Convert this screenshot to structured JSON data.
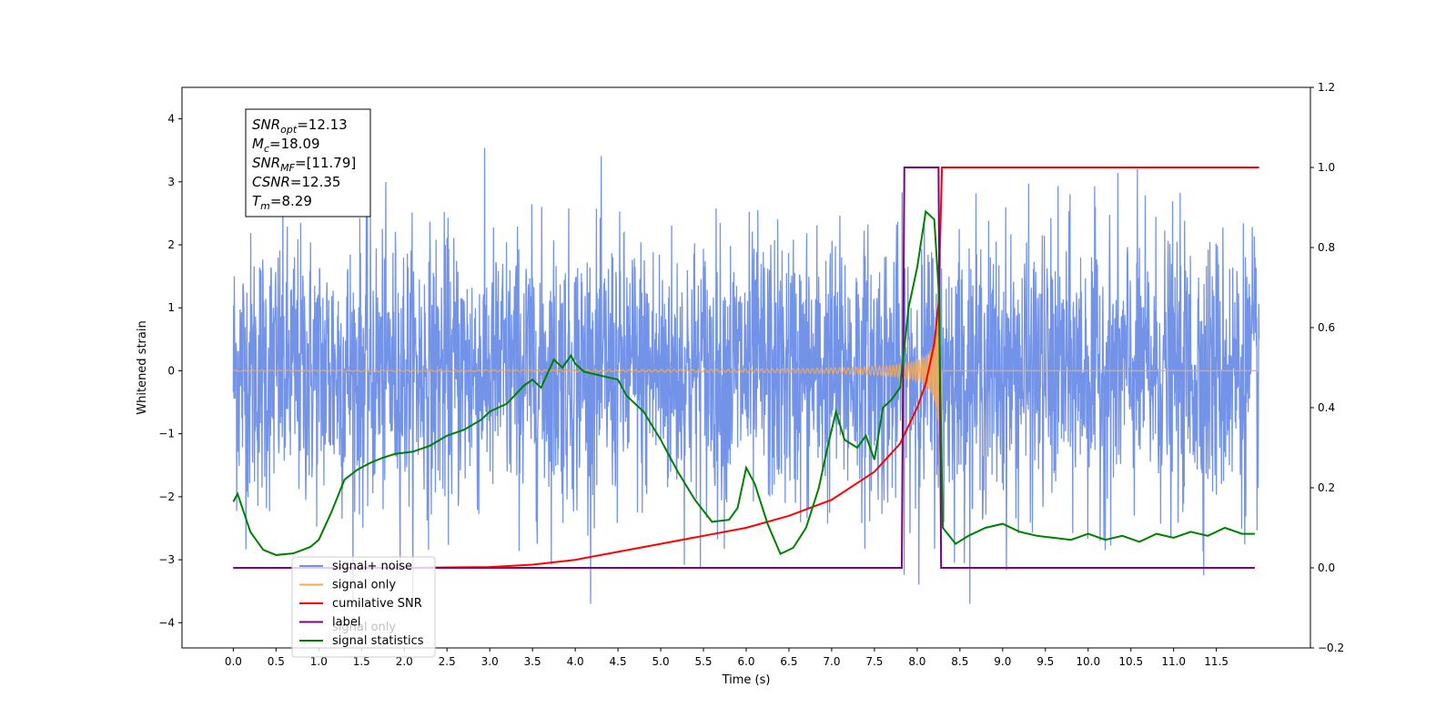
{
  "chart_data": {
    "type": "line",
    "xlabel": "Time (s)",
    "ylabel": "Whitened strain",
    "xlim": [
      -0.6,
      12.6
    ],
    "ylim": [
      -4.4,
      4.5
    ],
    "y2lim": [
      -0.2,
      1.2
    ],
    "x_ticks": [
      "0.0",
      "0.5",
      "1.0",
      "1.5",
      "2.0",
      "2.5",
      "3.0",
      "3.5",
      "4.0",
      "4.5",
      "5.0",
      "5.5",
      "6.0",
      "6.5",
      "7.0",
      "7.5",
      "8.0",
      "8.5",
      "9.0",
      "9.5",
      "10.0",
      "10.5",
      "11.0",
      "11.5"
    ],
    "y_ticks": [
      "4",
      "3",
      "2",
      "1",
      "0",
      "−1",
      "−2",
      "−3",
      "−4"
    ],
    "y2_ticks": [
      "1.2",
      "1.0",
      "0.8",
      "0.6",
      "0.4",
      "0.2",
      "0.0",
      "−0.2"
    ],
    "grid": false,
    "legend_position": "bottom-left",
    "annotation": [
      {
        "base": "SNR",
        "sub": "opt",
        "value": "=12.13"
      },
      {
        "base": "M",
        "sub": "c",
        "value": "=18.09"
      },
      {
        "base": "SNR",
        "sub": "MF",
        "value": "=[11.79]"
      },
      {
        "base": "CSNR",
        "sub": "",
        "value": "=12.35"
      },
      {
        "base": "T",
        "sub": "m",
        "value": "=8.29"
      }
    ],
    "ghost_legend_label": "signal only",
    "series": [
      {
        "name": "signal+ noise",
        "color": "#7393e8",
        "axis": "left",
        "description": "white noise, std approx 1.1, peaks to about 3.7 and -3.7, spanning 0.0 to 12.0 s"
      },
      {
        "name": "signal only",
        "color": "#f5a955",
        "axis": "left",
        "description": "chirp, amplitude near 0 until about 4.5 s, grows to about 0.6 at 8.29 s, then 0"
      },
      {
        "name": "cumilative SNR",
        "color": "#ff0000",
        "axis": "right",
        "x": [
          0.0,
          2.0,
          3.0,
          3.5,
          4.0,
          4.5,
          5.0,
          5.5,
          6.0,
          6.5,
          7.0,
          7.5,
          7.8,
          8.0,
          8.1,
          8.2,
          8.25,
          8.29,
          12.0
        ],
        "y": [
          0.0,
          0.0,
          0.002,
          0.008,
          0.02,
          0.04,
          0.06,
          0.08,
          0.1,
          0.13,
          0.17,
          0.24,
          0.31,
          0.4,
          0.46,
          0.56,
          0.66,
          1.0,
          1.0
        ]
      },
      {
        "name": "label",
        "color": "#800080",
        "axis": "right",
        "x": [
          0.0,
          7.82,
          7.85,
          8.25,
          8.28,
          11.95
        ],
        "y": [
          0.0,
          0.0,
          1.0,
          1.0,
          0.0,
          0.0
        ]
      },
      {
        "name": "signal statistics",
        "color": "#008000",
        "axis": "right",
        "x": [
          0.0,
          0.05,
          0.2,
          0.35,
          0.5,
          0.7,
          0.9,
          1.0,
          1.15,
          1.3,
          1.45,
          1.6,
          1.75,
          1.9,
          2.1,
          2.3,
          2.5,
          2.7,
          2.9,
          3.0,
          3.2,
          3.4,
          3.5,
          3.6,
          3.75,
          3.85,
          3.95,
          4.0,
          4.1,
          4.3,
          4.5,
          4.6,
          4.7,
          4.8,
          5.0,
          5.2,
          5.4,
          5.6,
          5.8,
          5.9,
          6.0,
          6.1,
          6.25,
          6.4,
          6.55,
          6.7,
          6.85,
          6.95,
          7.05,
          7.15,
          7.3,
          7.4,
          7.5,
          7.6,
          7.7,
          7.8,
          7.9,
          8.0,
          8.1,
          8.2,
          8.25,
          8.3,
          8.45,
          8.6,
          8.8,
          9.0,
          9.2,
          9.4,
          9.6,
          9.8,
          10.0,
          10.2,
          10.4,
          10.6,
          10.8,
          11.0,
          11.2,
          11.4,
          11.6,
          11.8,
          11.95
        ],
        "y": [
          0.165,
          0.185,
          0.09,
          0.045,
          0.032,
          0.036,
          0.052,
          0.07,
          0.14,
          0.22,
          0.245,
          0.262,
          0.275,
          0.285,
          0.29,
          0.305,
          0.33,
          0.345,
          0.37,
          0.39,
          0.41,
          0.455,
          0.47,
          0.45,
          0.52,
          0.5,
          0.53,
          0.51,
          0.49,
          0.48,
          0.47,
          0.43,
          0.41,
          0.39,
          0.32,
          0.24,
          0.17,
          0.115,
          0.12,
          0.15,
          0.25,
          0.21,
          0.11,
          0.035,
          0.05,
          0.1,
          0.2,
          0.3,
          0.39,
          0.32,
          0.3,
          0.33,
          0.27,
          0.4,
          0.42,
          0.45,
          0.65,
          0.75,
          0.89,
          0.87,
          0.7,
          0.1,
          0.06,
          0.08,
          0.1,
          0.11,
          0.09,
          0.08,
          0.075,
          0.07,
          0.085,
          0.07,
          0.08,
          0.065,
          0.085,
          0.075,
          0.09,
          0.08,
          0.1,
          0.085,
          0.085
        ]
      }
    ]
  }
}
